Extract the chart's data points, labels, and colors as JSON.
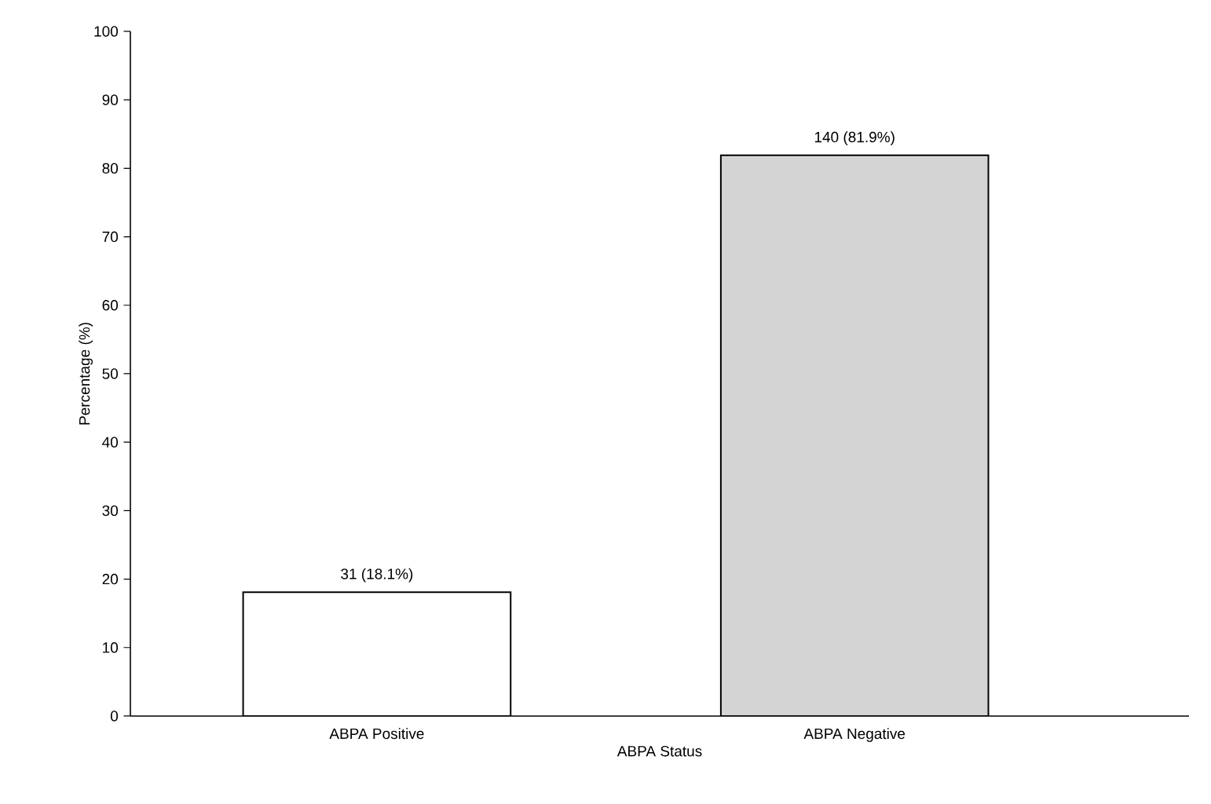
{
  "chart_data": {
    "type": "bar",
    "xlabel": "ABPA Status",
    "ylabel": "Percentage (%)",
    "categories": [
      "ABPA Positive",
      "ABPA Negative"
    ],
    "values": [
      18.1,
      81.9
    ],
    "colors": [
      "#ffffff",
      "#d4d4d4"
    ],
    "value_labels": [
      "31 (18.1%)",
      "140 (81.9%)"
    ],
    "ylim": [
      0,
      100
    ],
    "yticks": [
      0,
      10,
      20,
      30,
      40,
      50,
      60,
      70,
      80,
      90,
      100
    ],
    "grid": false
  }
}
